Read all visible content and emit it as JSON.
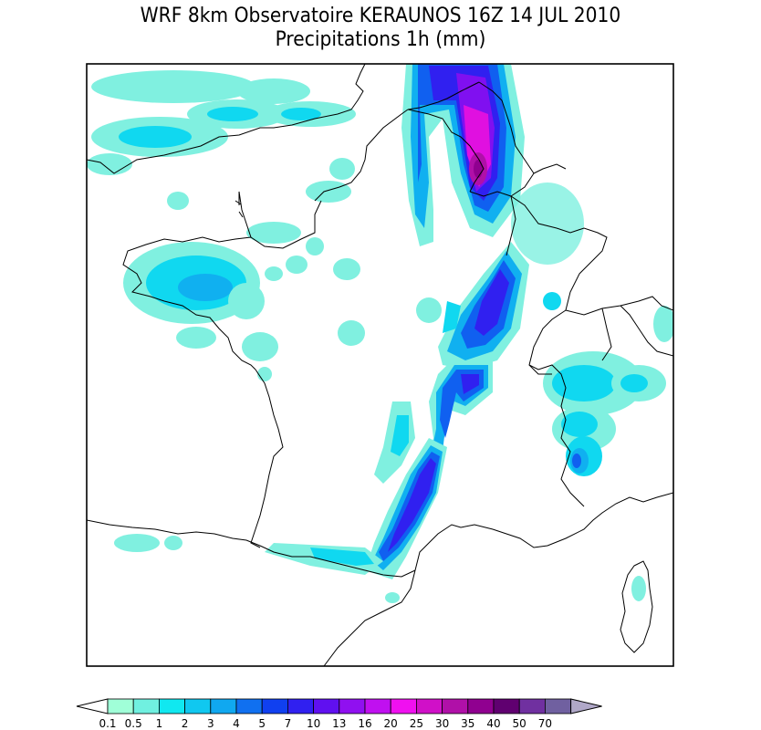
{
  "title": {
    "line1": "WRF 8km Observatoire KERAUNOS 16Z 14 JUL 2010",
    "line2": "Precipitations 1h (mm)"
  },
  "legend": {
    "labels": [
      "0.1",
      "0.5",
      "1",
      "2",
      "3",
      "4",
      "5",
      "7",
      "10",
      "13",
      "16",
      "20",
      "25",
      "30",
      "35",
      "40",
      "50",
      "70"
    ],
    "colors": [
      "#a0ffd8",
      "#70f0e0",
      "#10e8f0",
      "#10c8f0",
      "#10a8f0",
      "#1070f0",
      "#1040f0",
      "#3020f0",
      "#6010f0",
      "#9010f0",
      "#c010f0",
      "#f010f0",
      "#d010c8",
      "#b010a8",
      "#900090",
      "#600070",
      "#7030a0",
      "#7060a0"
    ],
    "under_color": "#ffffff",
    "over_color": "#b0a8c8"
  },
  "map_colors": {
    "light": "#80f0e0",
    "cyan": "#10d8f0",
    "sky": "#10b0f0",
    "blue": "#1060f0",
    "indigo": "#3020f0",
    "violet": "#8010f0",
    "magenta": "#e010e0",
    "deep": "#900090"
  }
}
